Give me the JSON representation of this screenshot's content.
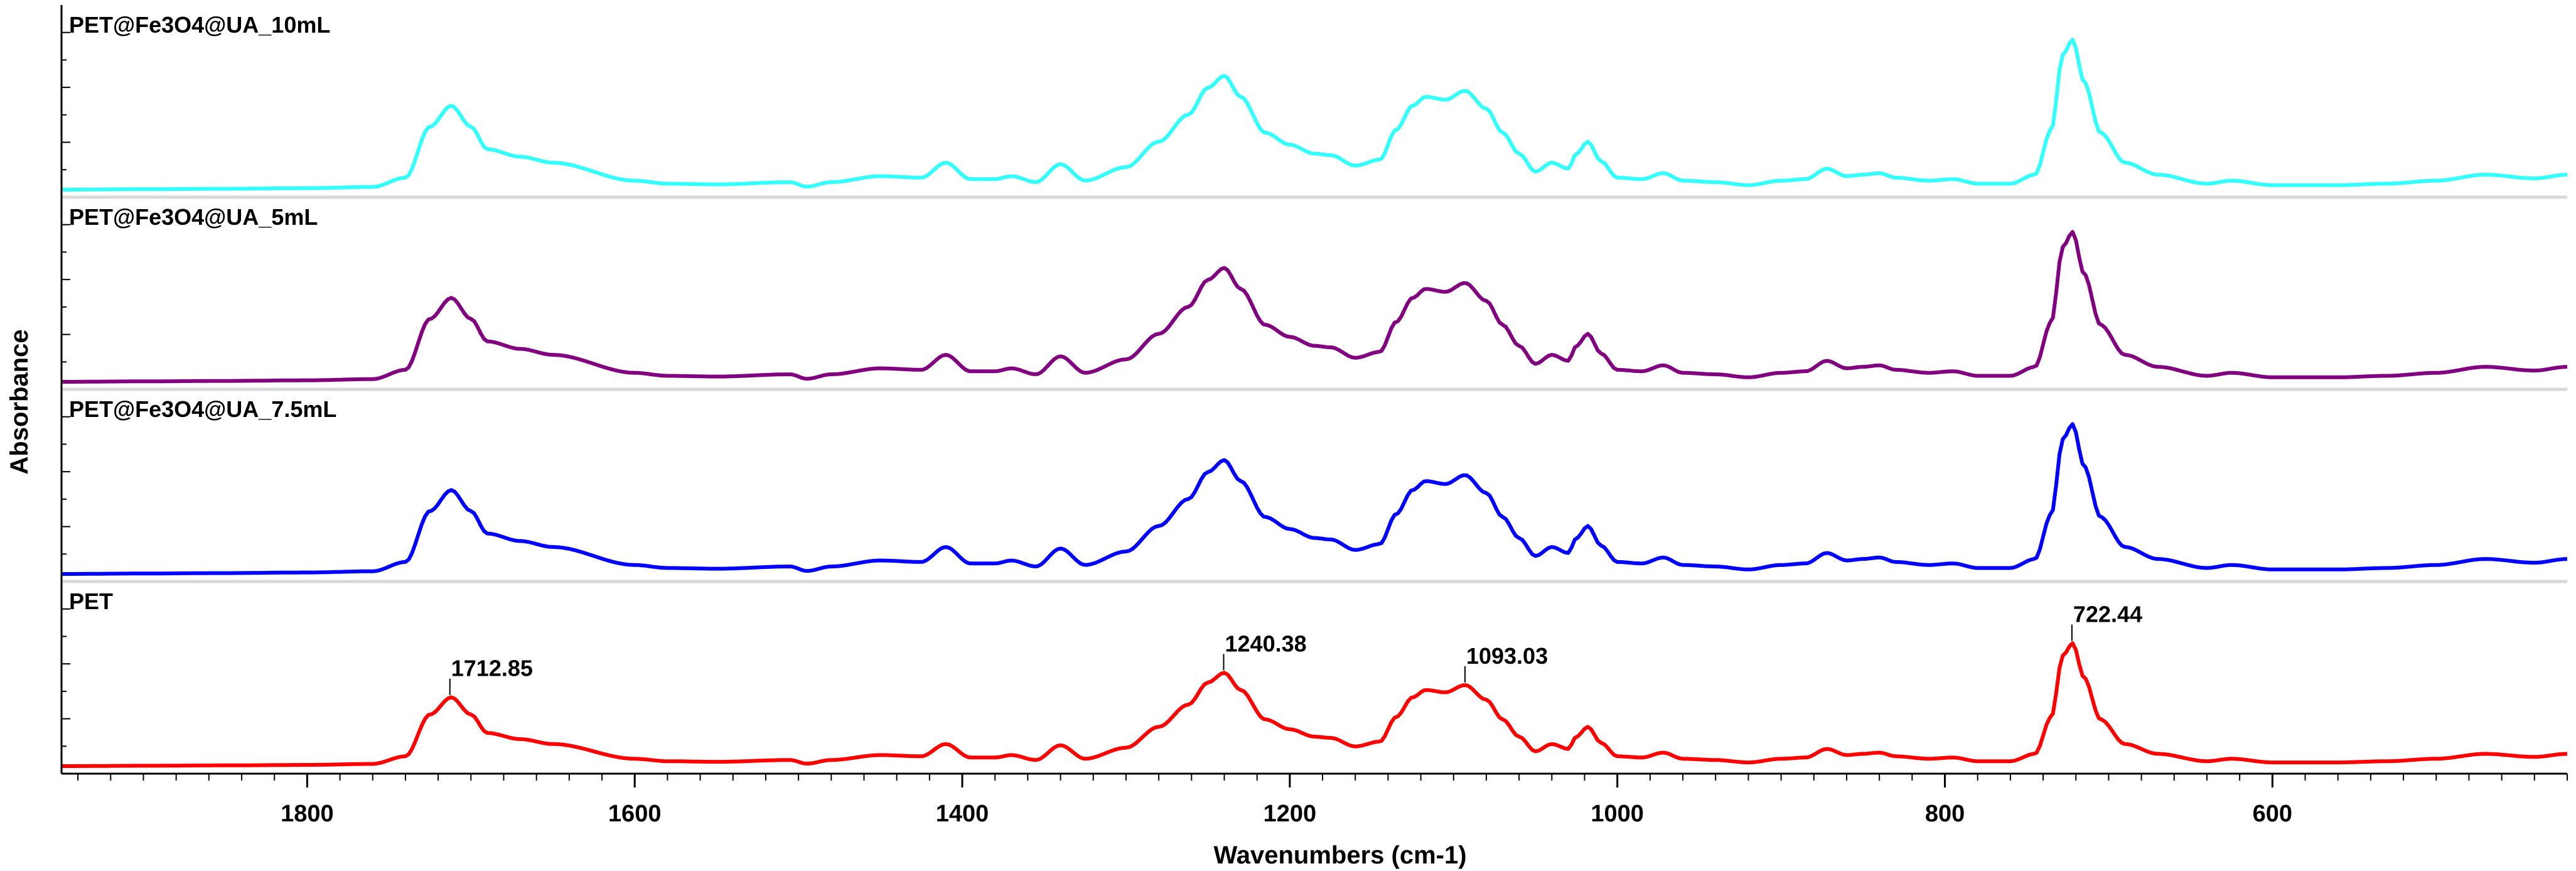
{
  "chart_data": {
    "type": "line",
    "title": "",
    "xlabel": "Wavenumbers (cm-1)",
    "ylabel": "Absorbance",
    "x_reversed": true,
    "xlim": [
      1950,
      420
    ],
    "x_ticks": [
      1800,
      1600,
      1400,
      1200,
      1000,
      800,
      600
    ],
    "x_tick_labels": [
      "1800",
      "1600",
      "1400",
      "1200",
      "1000",
      "800",
      "600"
    ],
    "panels_top_to_bottom": [
      "PET@Fe3O4@UA_10mL",
      "PET@Fe3O4@UA_5mL",
      "PET@Fe3O4@UA_7.5mL",
      "PET"
    ],
    "baseline_shape": {
      "x": [
        1950,
        1900,
        1850,
        1800,
        1760,
        1740,
        1725,
        1712,
        1700,
        1690,
        1670,
        1650,
        1600,
        1580,
        1550,
        1505,
        1495,
        1480,
        1450,
        1425,
        1410,
        1395,
        1380,
        1370,
        1355,
        1340,
        1325,
        1300,
        1280,
        1262,
        1250,
        1240,
        1230,
        1215,
        1200,
        1185,
        1175,
        1160,
        1145,
        1135,
        1125,
        1117,
        1105,
        1093,
        1080,
        1070,
        1060,
        1050,
        1040,
        1030,
        1025,
        1018,
        1010,
        1000,
        985,
        972,
        960,
        940,
        920,
        900,
        885,
        872,
        860,
        850,
        840,
        830,
        810,
        795,
        780,
        760,
        745,
        735,
        728,
        722,
        715,
        705,
        690,
        670,
        640,
        625,
        600,
        560,
        530,
        500,
        470,
        440,
        420
      ],
      "y": [
        0,
        0.003,
        0.006,
        0.01,
        0.018,
        0.08,
        0.42,
        0.56,
        0.42,
        0.27,
        0.22,
        0.18,
        0.06,
        0.04,
        0.035,
        0.05,
        0.02,
        0.05,
        0.09,
        0.08,
        0.18,
        0.07,
        0.07,
        0.09,
        0.05,
        0.17,
        0.06,
        0.15,
        0.32,
        0.5,
        0.68,
        0.76,
        0.62,
        0.38,
        0.3,
        0.24,
        0.23,
        0.16,
        0.2,
        0.4,
        0.56,
        0.62,
        0.6,
        0.66,
        0.54,
        0.38,
        0.24,
        0.12,
        0.18,
        0.14,
        0.24,
        0.32,
        0.19,
        0.08,
        0.07,
        0.11,
        0.06,
        0.05,
        0.03,
        0.06,
        0.07,
        0.14,
        0.09,
        0.1,
        0.11,
        0.08,
        0.06,
        0.07,
        0.04,
        0.04,
        0.1,
        0.4,
        0.9,
        1.0,
        0.72,
        0.38,
        0.18,
        0.1,
        0.04,
        0.06,
        0.03,
        0.03,
        0.04,
        0.06,
        0.1,
        0.075,
        0.1
      ]
    },
    "series": [
      {
        "name": "PET@Fe3O4@UA_10mL",
        "color": "#33ffff",
        "panel": 0,
        "scale": 1.0
      },
      {
        "name": "PET@Fe3O4@UA_5mL",
        "color": "#800080",
        "panel": 1,
        "scale": 1.0
      },
      {
        "name": "PET@Fe3O4@UA_7.5mL",
        "color": "#0000ff",
        "panel": 2,
        "scale": 1.0
      },
      {
        "name": "PET",
        "color": "#ff0000",
        "panel": 3,
        "scale": 0.82
      }
    ],
    "annotations": [
      {
        "series": "PET",
        "x": 1712.85,
        "text": "1712.85"
      },
      {
        "series": "PET",
        "x": 1240.38,
        "text": "1240.38"
      },
      {
        "series": "PET",
        "x": 1093.03,
        "text": "1093.03"
      },
      {
        "series": "PET",
        "x": 722.44,
        "text": "722.44"
      }
    ]
  }
}
